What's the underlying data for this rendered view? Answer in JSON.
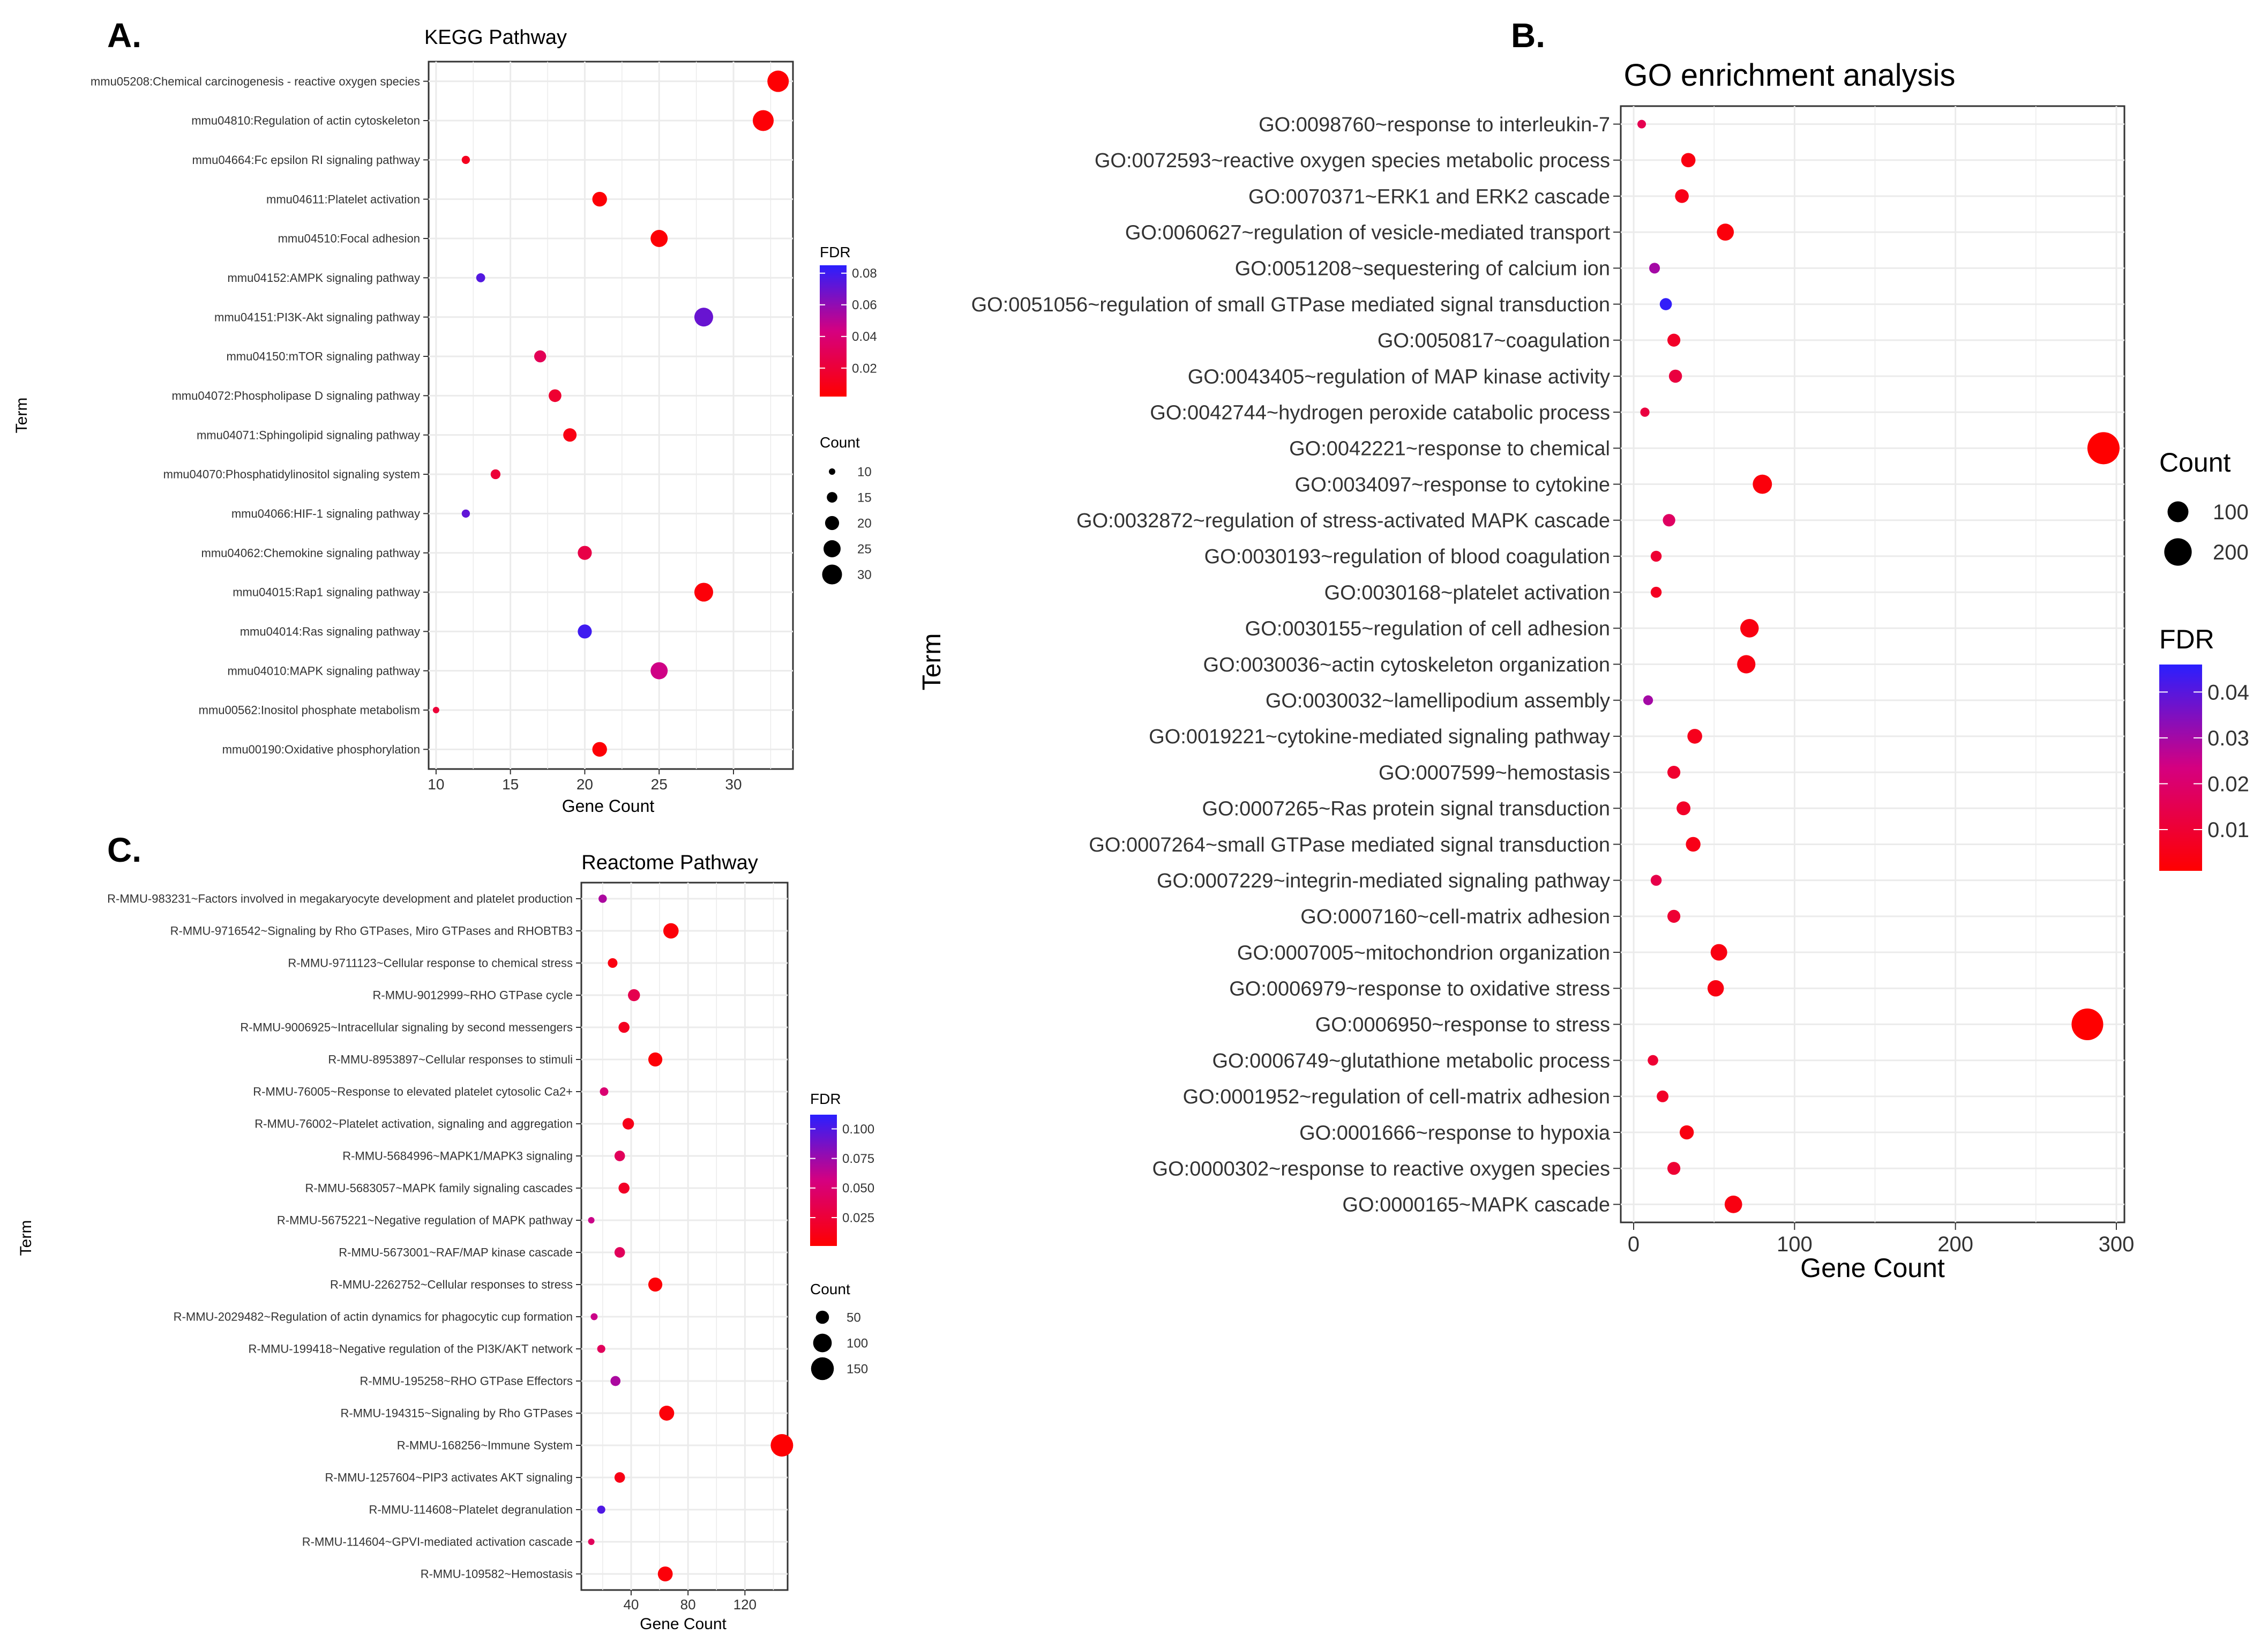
{
  "chart_data": [
    {
      "panel_label": "A.",
      "type": "scatter",
      "title": "KEGG Pathway",
      "xlabel": "Gene Count",
      "ylabel": "Term",
      "xlim": [
        9.5,
        34
      ],
      "xticks": [
        10,
        15,
        20,
        25,
        30
      ],
      "grid": true,
      "legend_position": "right",
      "fdr_legend": {
        "title": "FDR",
        "min": 0.002,
        "max": 0.085,
        "ticks": [
          0.08,
          0.06,
          0.04,
          0.02
        ],
        "tick_labels": [
          "0.08",
          "0.06",
          "0.04",
          "0.02"
        ],
        "color_low": "#ff0000",
        "color_mid": "#d50080",
        "color_high": "#2a1fff"
      },
      "count_legend": {
        "title": "Count",
        "values": [
          10,
          15,
          20,
          25,
          30
        ],
        "labels": [
          "10",
          "15",
          "20",
          "25",
          "30"
        ]
      },
      "terms": [
        "mmu05208:Chemical carcinogenesis - reactive oxygen species",
        "mmu04810:Regulation of actin cytoskeleton",
        "mmu04664:Fc epsilon RI signaling pathway",
        "mmu04611:Platelet activation",
        "mmu04510:Focal adhesion",
        "mmu04152:AMPK signaling pathway",
        "mmu04151:PI3K-Akt signaling pathway",
        "mmu04150:mTOR signaling pathway",
        "mmu04072:Phospholipase D signaling pathway",
        "mmu04071:Sphingolipid signaling pathway",
        "mmu04070:Phosphatidylinositol signaling system",
        "mmu04066:HIF-1 signaling pathway",
        "mmu04062:Chemokine signaling pathway",
        "mmu04015:Rap1 signaling pathway",
        "mmu04014:Ras signaling pathway",
        "mmu04010:MAPK signaling pathway",
        "mmu00562:Inositol phosphate metabolism",
        "mmu00190:Oxidative phosphorylation"
      ],
      "counts": [
        33,
        32,
        12,
        21,
        25,
        13,
        28,
        17,
        18,
        19,
        14,
        12,
        20,
        28,
        20,
        25,
        10,
        21
      ],
      "fdr": [
        0.003,
        0.004,
        0.012,
        0.004,
        0.004,
        0.075,
        0.07,
        0.03,
        0.018,
        0.008,
        0.02,
        0.072,
        0.025,
        0.005,
        0.08,
        0.045,
        0.02,
        0.004
      ]
    },
    {
      "panel_label": "B.",
      "type": "scatter",
      "title": "GO enrichment analysis",
      "xlabel": "Gene Count",
      "ylabel": "Term",
      "xlim": [
        -8,
        305
      ],
      "xticks": [
        0,
        100,
        200,
        300
      ],
      "grid": true,
      "legend_position": "right",
      "fdr_legend": {
        "title": "FDR",
        "min": 0.001,
        "max": 0.046,
        "ticks": [
          0.04,
          0.03,
          0.02,
          0.01
        ],
        "tick_labels": [
          "0.04",
          "0.03",
          "0.02",
          "0.01"
        ],
        "color_low": "#ff0000",
        "color_mid": "#d50080",
        "color_high": "#2a1fff"
      },
      "count_legend": {
        "title": "Count",
        "values": [
          100,
          200
        ],
        "labels": [
          "100",
          "200"
        ]
      },
      "terms": [
        "GO:0098760~response to interleukin-7",
        "GO:0072593~reactive oxygen species metabolic process",
        "GO:0070371~ERK1 and ERK2 cascade",
        "GO:0060627~regulation of vesicle-mediated transport",
        "GO:0051208~sequestering of calcium ion",
        "GO:0051056~regulation of small GTPase mediated signal transduction",
        "GO:0050817~coagulation",
        "GO:0043405~regulation of MAP kinase activity",
        "GO:0042744~hydrogen peroxide catabolic process",
        "GO:0042221~response to chemical",
        "GO:0034097~response to cytokine",
        "GO:0032872~regulation of stress-activated MAPK cascade",
        "GO:0030193~regulation of blood coagulation",
        "GO:0030168~platelet activation",
        "GO:0030155~regulation of cell adhesion",
        "GO:0030036~actin cytoskeleton organization",
        "GO:0030032~lamellipodium assembly",
        "GO:0019221~cytokine-mediated signaling pathway",
        "GO:0007599~hemostasis",
        "GO:0007265~Ras protein signal transduction",
        "GO:0007264~small GTPase mediated signal transduction",
        "GO:0007229~integrin-mediated signaling pathway",
        "GO:0007160~cell-matrix adhesion",
        "GO:0007005~mitochondrion organization",
        "GO:0006979~response to oxidative stress",
        "GO:0006950~response to stress",
        "GO:0006749~glutathione metabolic process",
        "GO:0001952~regulation of cell-matrix adhesion",
        "GO:0001666~response to hypoxia",
        "GO:0000302~response to reactive oxygen species",
        "GO:0000165~MAPK cascade"
      ],
      "counts": [
        5,
        34,
        30,
        57,
        13,
        20,
        25,
        26,
        7,
        292,
        80,
        22,
        14,
        14,
        72,
        70,
        9,
        38,
        25,
        31,
        37,
        14,
        25,
        53,
        51,
        282,
        12,
        18,
        33,
        25,
        62
      ],
      "fdr": [
        0.015,
        0.004,
        0.005,
        0.003,
        0.03,
        0.045,
        0.008,
        0.012,
        0.012,
        0.001,
        0.003,
        0.018,
        0.01,
        0.007,
        0.004,
        0.004,
        0.03,
        0.006,
        0.009,
        0.008,
        0.005,
        0.014,
        0.01,
        0.004,
        0.004,
        0.001,
        0.01,
        0.008,
        0.004,
        0.01,
        0.004
      ]
    },
    {
      "panel_label": "C.",
      "type": "scatter",
      "title": "Reactome Pathway",
      "xlabel": "Gene Count",
      "ylabel": "Term",
      "xlim": [
        5,
        150
      ],
      "xticks": [
        40,
        80,
        120
      ],
      "grid": true,
      "legend_position": "right",
      "fdr_legend": {
        "title": "FDR",
        "min": 0.001,
        "max": 0.112,
        "ticks": [
          0.1,
          0.075,
          0.05,
          0.025
        ],
        "tick_labels": [
          "0.100",
          "0.075",
          "0.050",
          "0.025"
        ],
        "color_low": "#ff0000",
        "color_mid": "#d50080",
        "color_high": "#2a1fff"
      },
      "count_legend": {
        "title": "Count",
        "values": [
          50,
          100,
          150
        ],
        "labels": [
          "50",
          "100",
          "150"
        ]
      },
      "terms": [
        "R-MMU-983231~Factors involved in megakaryocyte development and platelet production",
        "R-MMU-9716542~Signaling by Rho GTPases, Miro GTPases and RHOBTB3",
        "R-MMU-9711123~Cellular response to chemical stress",
        "R-MMU-9012999~RHO GTPase cycle",
        "R-MMU-9006925~Intracellular signaling by second messengers",
        "R-MMU-8953897~Cellular responses to stimuli",
        "R-MMU-76005~Response to elevated platelet cytosolic Ca2+",
        "R-MMU-76002~Platelet activation, signaling and aggregation",
        "R-MMU-5684996~MAPK1/MAPK3 signaling",
        "R-MMU-5683057~MAPK family signaling cascades",
        "R-MMU-5675221~Negative regulation of MAPK pathway",
        "R-MMU-5673001~RAF/MAP kinase cascade",
        "R-MMU-2262752~Cellular responses to stress",
        "R-MMU-2029482~Regulation of actin dynamics for phagocytic cup formation",
        "R-MMU-199418~Negative regulation of the PI3K/AKT network",
        "R-MMU-195258~RHO GTPase Effectors",
        "R-MMU-194315~Signaling by Rho GTPases",
        "R-MMU-168256~Immune System",
        "R-MMU-1257604~PIP3 activates AKT signaling",
        "R-MMU-114608~Platelet degranulation",
        "R-MMU-114604~GPVI-mediated activation cascade",
        "R-MMU-109582~Hemostasis"
      ],
      "counts": [
        20,
        68,
        27,
        42,
        35,
        57,
        21,
        38,
        32,
        35,
        12,
        32,
        57,
        14,
        19,
        29,
        65,
        146,
        32,
        19,
        12,
        64
      ],
      "fdr": [
        0.07,
        0.005,
        0.008,
        0.035,
        0.015,
        0.004,
        0.05,
        0.012,
        0.04,
        0.018,
        0.06,
        0.04,
        0.004,
        0.06,
        0.04,
        0.07,
        0.005,
        0.002,
        0.01,
        0.1,
        0.04,
        0.005
      ]
    }
  ]
}
